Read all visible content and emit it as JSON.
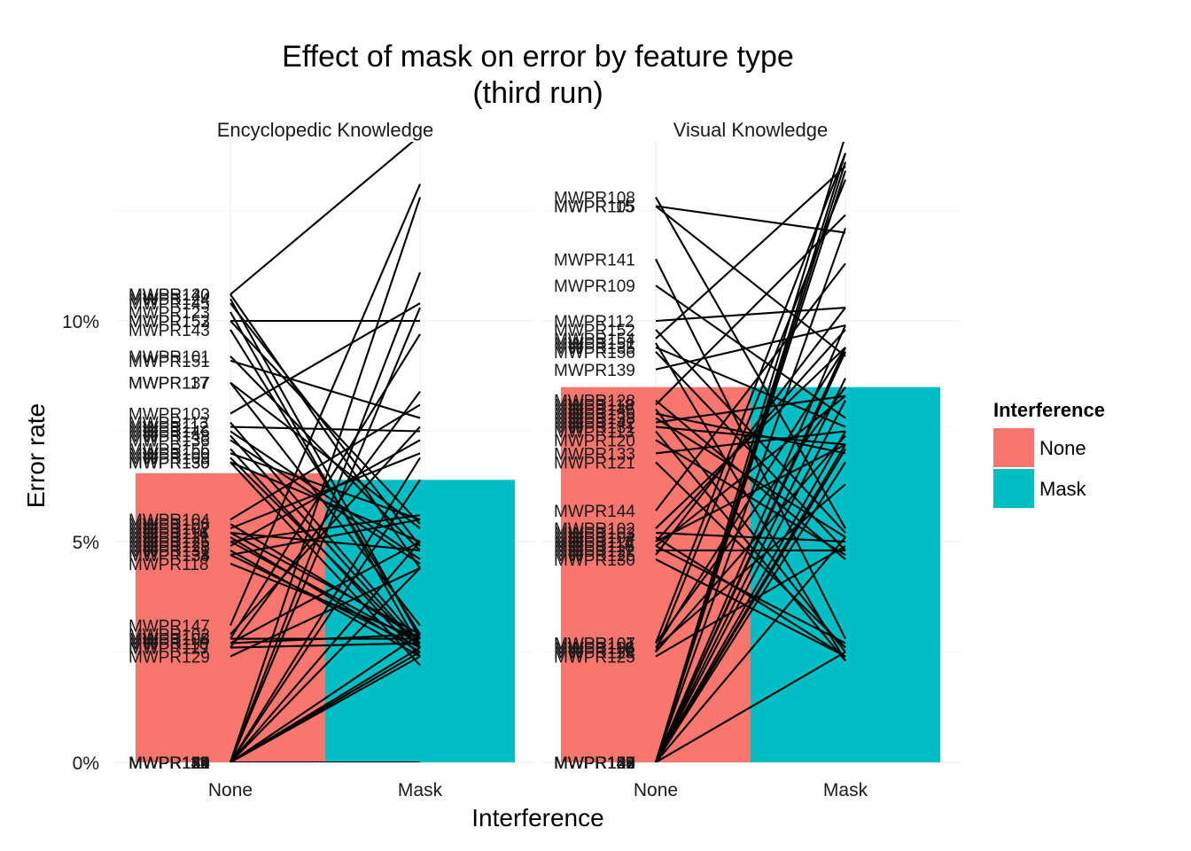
{
  "chart_data": {
    "type": "bar",
    "title": "Effect of mask on error by feature type",
    "subtitle": "(third run)",
    "xlabel": "Interference",
    "ylabel": "Error rate",
    "categories": [
      "None",
      "Mask"
    ],
    "ylim": [
      0,
      0.14
    ],
    "yticks": [
      {
        "value": 0,
        "label": "0%"
      },
      {
        "value": 0.05,
        "label": "5%"
      },
      {
        "value": 0.1,
        "label": "10%"
      }
    ],
    "grid": true,
    "legend": {
      "title": "Interference",
      "position": "right",
      "entries": [
        {
          "label": "None",
          "color": "#F8766D"
        },
        {
          "label": "Mask",
          "color": "#00BFC4"
        }
      ]
    },
    "series_colors": {
      "None": "#F8766D",
      "Mask": "#00BFC4"
    },
    "line_color": "#000000",
    "panels": [
      {
        "facet": "Encyclopedic Knowledge",
        "bars": {
          "None": 0.0655,
          "Mask": 0.064
        },
        "participants": [
          {
            "label": "MWPR140",
            "none": 0.106,
            "mask": 0.142
          },
          {
            "label": "MWPR120",
            "none": 0.106,
            "mask": 0.044
          },
          {
            "label": "MWPR124",
            "none": 0.105,
            "mask": 0.028
          },
          {
            "label": "MWPR145",
            "none": 0.104,
            "mask": 0.049
          },
          {
            "label": "MWPR123",
            "none": 0.102,
            "mask": 0.026
          },
          {
            "label": "MWPR153",
            "none": 0.1,
            "mask": 0.1
          },
          {
            "label": "MWPR152",
            "none": 0.1,
            "mask": 0.054
          },
          {
            "label": "MWPR143",
            "none": 0.098,
            "mask": 0.029
          },
          {
            "label": "MWPR101",
            "none": 0.092,
            "mask": 0.048
          },
          {
            "label": "MWPR151",
            "none": 0.091,
            "mask": 0.078
          },
          {
            "label": "MWPR137",
            "none": 0.086,
            "mask": 0.031
          },
          {
            "label": "MWPR117",
            "none": 0.086,
            "mask": 0.053
          },
          {
            "label": "MWPR103",
            "none": 0.079,
            "mask": 0.104
          },
          {
            "label": "MWPR113",
            "none": 0.077,
            "mask": 0.027
          },
          {
            "label": "MWPR112",
            "none": 0.076,
            "mask": 0.075
          },
          {
            "label": "MWPR146",
            "none": 0.075,
            "mask": 0.046
          },
          {
            "label": "MWPR148",
            "none": 0.074,
            "mask": 0.026
          },
          {
            "label": "MWPR136",
            "none": 0.073,
            "mask": 0.045
          },
          {
            "label": "MWPR156",
            "none": 0.071,
            "mask": 0.024
          },
          {
            "label": "MWPR100",
            "none": 0.07,
            "mask": 0.055
          },
          {
            "label": "MWPR109",
            "none": 0.069,
            "mask": 0.026
          },
          {
            "label": "MWPR130",
            "none": 0.068,
            "mask": 0.05
          },
          {
            "label": "MWPR135",
            "none": 0.068,
            "mask": 0.022
          },
          {
            "label": "MWPR104",
            "none": 0.055,
            "mask": 0.081
          },
          {
            "label": "MWPR106",
            "none": 0.054,
            "mask": 0.028
          },
          {
            "label": "MWPR107",
            "none": 0.053,
            "mask": 0.07
          },
          {
            "label": "MWPR114",
            "none": 0.052,
            "mask": 0.029
          },
          {
            "label": "MWPR116",
            "none": 0.052,
            "mask": 0.048
          },
          {
            "label": "MWPR121",
            "none": 0.051,
            "mask": 0.025
          },
          {
            "label": "MWPR125",
            "none": 0.05,
            "mask": 0.056
          },
          {
            "label": "MWPR126",
            "none": 0.05,
            "mask": 0.027
          },
          {
            "label": "MWPR128",
            "none": 0.049,
            "mask": 0.073
          },
          {
            "label": "MWPR131",
            "none": 0.048,
            "mask": 0.024
          },
          {
            "label": "MWPR134",
            "none": 0.047,
            "mask": 0.055
          },
          {
            "label": "MWPR138",
            "none": 0.047,
            "mask": 0.026
          },
          {
            "label": "MWPR118",
            "none": 0.045,
            "mask": 0.028
          },
          {
            "label": "MWPR147",
            "none": 0.031,
            "mask": 0.131
          },
          {
            "label": "MWPR102",
            "none": 0.029,
            "mask": 0.076
          },
          {
            "label": "MWPR105",
            "none": 0.028,
            "mask": 0.028
          },
          {
            "label": "MWPR108",
            "none": 0.028,
            "mask": 0.097
          },
          {
            "label": "MWPR110",
            "none": 0.027,
            "mask": 0.05
          },
          {
            "label": "MWPR115",
            "none": 0.027,
            "mask": 0.029
          },
          {
            "label": "MWPR119",
            "none": 0.026,
            "mask": 0.084
          },
          {
            "label": "MWPR127",
            "none": 0.026,
            "mask": 0.027
          },
          {
            "label": "MWPR129",
            "none": 0.024,
            "mask": 0.044
          },
          {
            "label": "MWPR111",
            "none": 0,
            "mask": 0.111
          },
          {
            "label": "MWPR122",
            "none": 0,
            "mask": 0.103
          },
          {
            "label": "MWPR132",
            "none": 0,
            "mask": 0.069
          },
          {
            "label": "MWPR133",
            "none": 0,
            "mask": 0.05
          },
          {
            "label": "MWPR139",
            "none": 0,
            "mask": 0.044
          },
          {
            "label": "MWPR141",
            "none": 0,
            "mask": 0.029
          },
          {
            "label": "MWPR142",
            "none": 0,
            "mask": 0.026
          },
          {
            "label": "MWPR144",
            "none": 0,
            "mask": 0.024
          },
          {
            "label": "MWPR149",
            "none": 0,
            "mask": 0
          },
          {
            "label": "MWPR150",
            "none": 0,
            "mask": 0.064
          },
          {
            "label": "MWPR154",
            "none": 0,
            "mask": 0.025
          },
          {
            "label": "MWPR155",
            "none": 0,
            "mask": 0.128
          }
        ]
      },
      {
        "facet": "Visual Knowledge",
        "bars": {
          "None": 0.085,
          "Mask": 0.085
        },
        "participants": [
          {
            "label": "MWPR108",
            "none": 0.128,
            "mask": 0.053
          },
          {
            "label": "MWPR105",
            "none": 0.126,
            "mask": 0.12
          },
          {
            "label": "MWPR115",
            "none": 0.126,
            "mask": 0.092
          },
          {
            "label": "MWPR141",
            "none": 0.114,
            "mask": 0.028
          },
          {
            "label": "MWPR109",
            "none": 0.108,
            "mask": 0.078
          },
          {
            "label": "MWPR112",
            "none": 0.1,
            "mask": 0.103
          },
          {
            "label": "MWPR152",
            "none": 0.098,
            "mask": 0.052
          },
          {
            "label": "MWPR154",
            "none": 0.096,
            "mask": 0.135
          },
          {
            "label": "MWPR151",
            "none": 0.095,
            "mask": 0.023
          },
          {
            "label": "MWPR135",
            "none": 0.094,
            "mask": 0.076
          },
          {
            "label": "MWPR156",
            "none": 0.093,
            "mask": 0.048
          },
          {
            "label": "MWPR139",
            "none": 0.089,
            "mask": 0.099
          },
          {
            "label": "MWPR128",
            "none": 0.082,
            "mask": 0.046
          },
          {
            "label": "MWPR118",
            "none": 0.081,
            "mask": 0.124
          },
          {
            "label": "MWPR146",
            "none": 0.08,
            "mask": 0.025
          },
          {
            "label": "MWPR136",
            "none": 0.079,
            "mask": 0.07
          },
          {
            "label": "MWPR138",
            "none": 0.078,
            "mask": 0.051
          },
          {
            "label": "MWPR142",
            "none": 0.077,
            "mask": 0.083
          },
          {
            "label": "MWPR131",
            "none": 0.076,
            "mask": 0.072
          },
          {
            "label": "MWPR113",
            "none": 0.075,
            "mask": 0.023
          },
          {
            "label": "MWPR120",
            "none": 0.073,
            "mask": 0.047
          },
          {
            "label": "MWPR133",
            "none": 0.07,
            "mask": 0.075
          },
          {
            "label": "MWPR121",
            "none": 0.068,
            "mask": 0.026
          },
          {
            "label": "MWPR144",
            "none": 0.057,
            "mask": 0.113
          },
          {
            "label": "MWPR102",
            "none": 0.053,
            "mask": 0.094
          },
          {
            "label": "MWPR103",
            "none": 0.052,
            "mask": 0.05
          },
          {
            "label": "MWPR104",
            "none": 0.051,
            "mask": 0.024
          },
          {
            "label": "MWPR111",
            "none": 0.05,
            "mask": 0.098
          },
          {
            "label": "MWPR114",
            "none": 0.05,
            "mask": 0.072
          },
          {
            "label": "MWPR116",
            "none": 0.049,
            "mask": 0.027
          },
          {
            "label": "MWPR117",
            "none": 0.049,
            "mask": 0.083
          },
          {
            "label": "MWPR122",
            "none": 0.048,
            "mask": 0.048
          },
          {
            "label": "MWPR126",
            "none": 0.047,
            "mask": 0.103
          },
          {
            "label": "MWPR130",
            "none": 0.046,
            "mask": 0.024
          },
          {
            "label": "MWPR107",
            "none": 0.027,
            "mask": 0.138
          },
          {
            "label": "MWPR101",
            "none": 0.027,
            "mask": 0.085
          },
          {
            "label": "MWPR106",
            "none": 0.026,
            "mask": 0.063
          },
          {
            "label": "MWPR110",
            "none": 0.026,
            "mask": 0.094
          },
          {
            "label": "MWPR119",
            "none": 0.025,
            "mask": 0.132
          },
          {
            "label": "MWPR124",
            "none": 0.025,
            "mask": 0.074
          },
          {
            "label": "MWPR125",
            "none": 0.024,
            "mask": 0.049
          },
          {
            "label": "MWPR129",
            "none": 0,
            "mask": 0.142
          },
          {
            "label": "MWPR100",
            "none": 0,
            "mask": 0.134
          },
          {
            "label": "MWPR123",
            "none": 0,
            "mask": 0.121
          },
          {
            "label": "MWPR127",
            "none": 0,
            "mask": 0.082
          },
          {
            "label": "MWPR132",
            "none": 0,
            "mask": 0.094
          },
          {
            "label": "MWPR134",
            "none": 0,
            "mask": 0.068
          },
          {
            "label": "MWPR137",
            "none": 0,
            "mask": 0.138
          },
          {
            "label": "MWPR140",
            "none": 0,
            "mask": 0.075
          },
          {
            "label": "MWPR143",
            "none": 0,
            "mask": 0.051
          },
          {
            "label": "MWPR145",
            "none": 0,
            "mask": 0.071
          },
          {
            "label": "MWPR147",
            "none": 0,
            "mask": 0.087
          },
          {
            "label": "MWPR148",
            "none": 0,
            "mask": 0.136
          },
          {
            "label": "MWPR149",
            "none": 0,
            "mask": 0.025
          },
          {
            "label": "MWPR150",
            "none": 0,
            "mask": 0.093
          },
          {
            "label": "MWPR153",
            "none": 0,
            "mask": 0.072
          },
          {
            "label": "MWPR155",
            "none": 0,
            "mask": 0.099
          }
        ]
      }
    ]
  }
}
